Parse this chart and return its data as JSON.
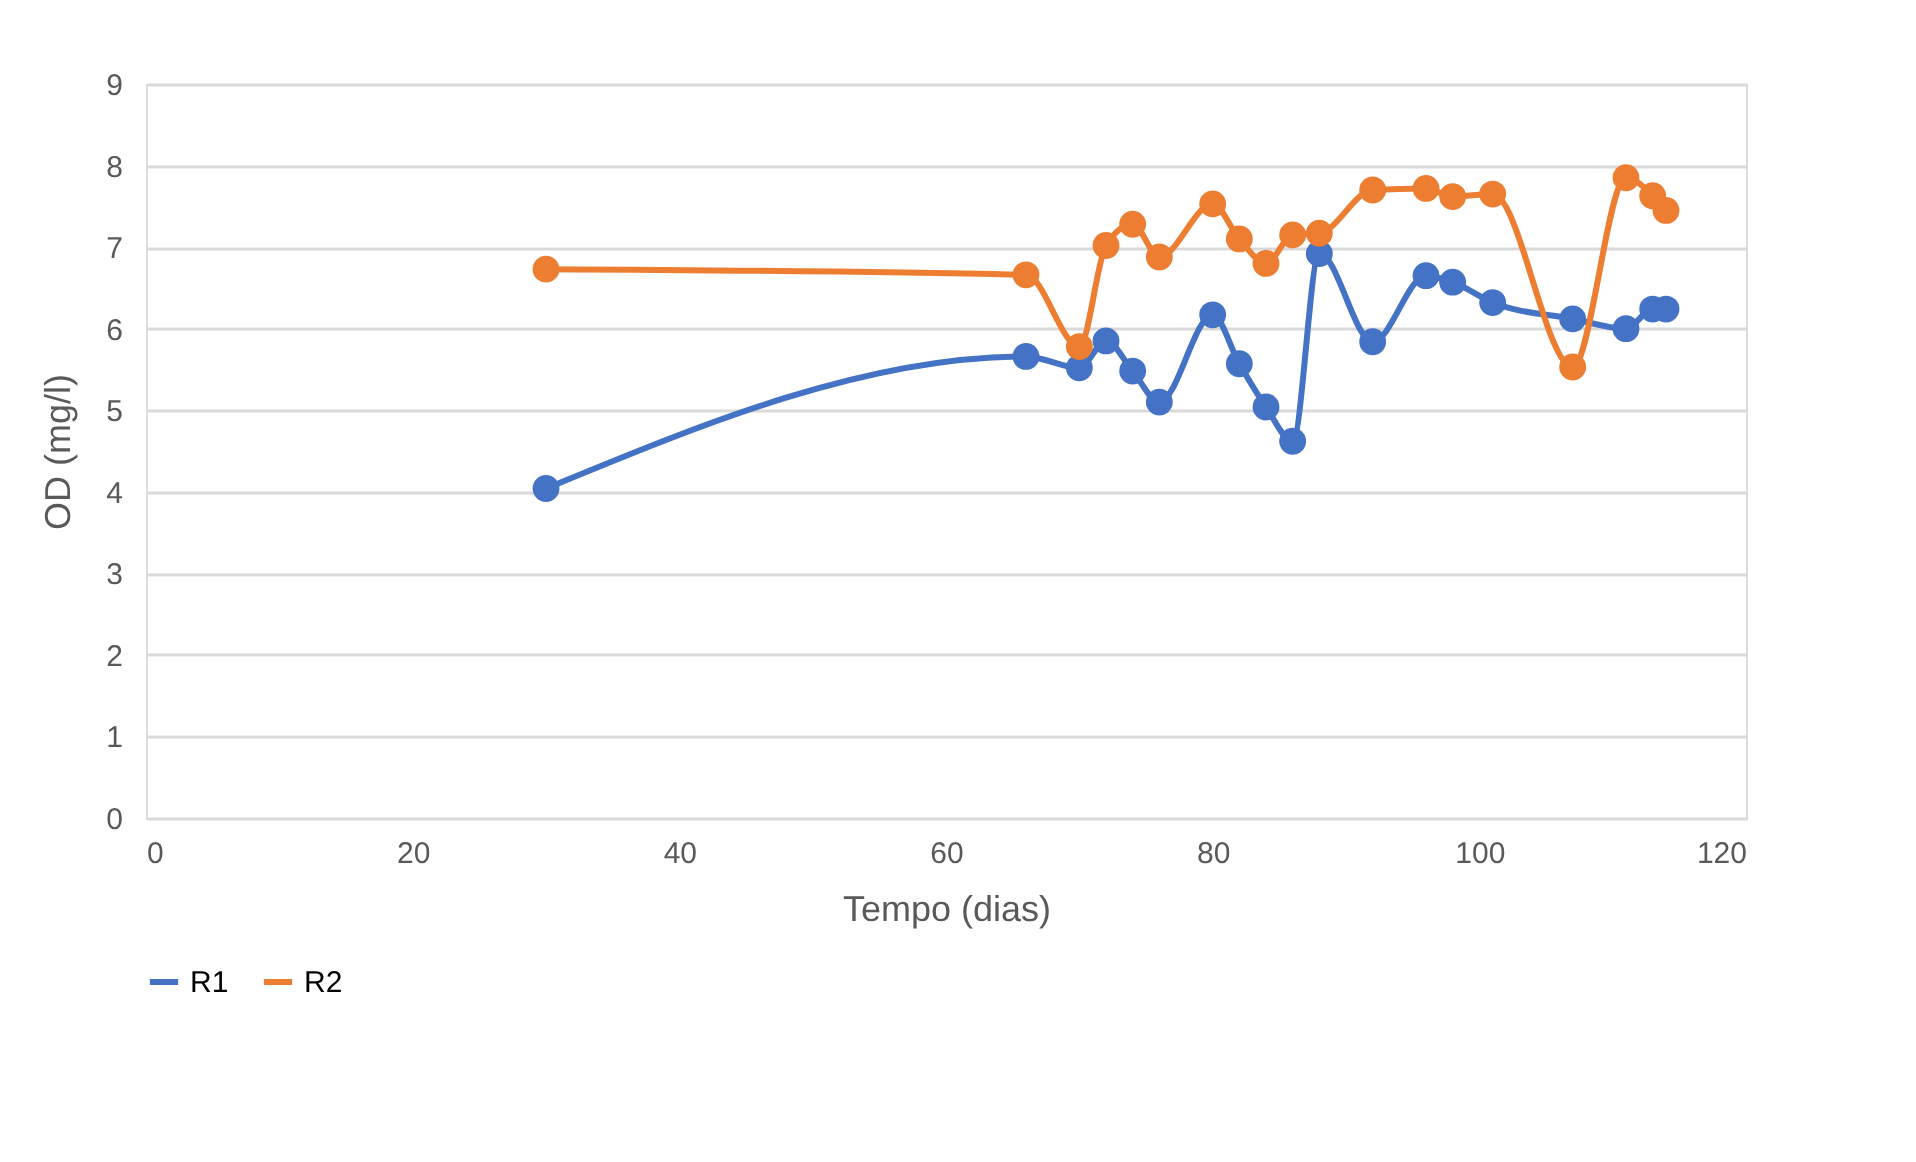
{
  "chart_data": {
    "type": "line",
    "xlabel": "Tempo (dias)",
    "ylabel": "OD (mg/l)",
    "x": [
      30,
      66,
      70,
      72,
      74,
      76,
      80,
      82,
      84,
      86,
      88,
      92,
      96,
      98,
      101,
      107,
      111,
      113,
      114
    ],
    "series": [
      {
        "name": "R1",
        "color": "#4472c4",
        "values": [
          4.04,
          5.66,
          5.52,
          5.85,
          5.48,
          5.1,
          6.17,
          5.57,
          5.04,
          4.62,
          6.92,
          5.84,
          6.65,
          6.57,
          6.32,
          6.12,
          6.0,
          6.24,
          6.24
        ]
      },
      {
        "name": "R2",
        "color": "#ed7d31",
        "values": [
          6.73,
          6.66,
          5.78,
          7.02,
          7.28,
          6.88,
          7.53,
          7.1,
          6.8,
          7.15,
          7.17,
          7.7,
          7.72,
          7.62,
          7.65,
          5.53,
          7.85,
          7.63,
          7.45
        ]
      }
    ],
    "xlim": [
      0,
      120
    ],
    "xticks": [
      0,
      20,
      40,
      60,
      80,
      100,
      120
    ],
    "ylim": [
      0,
      9
    ],
    "yticks": [
      0,
      1,
      2,
      3,
      4,
      5,
      6,
      7,
      8,
      9
    ],
    "grid": "y",
    "legend": "bottom",
    "marker": "circle",
    "line_style": "solid"
  }
}
